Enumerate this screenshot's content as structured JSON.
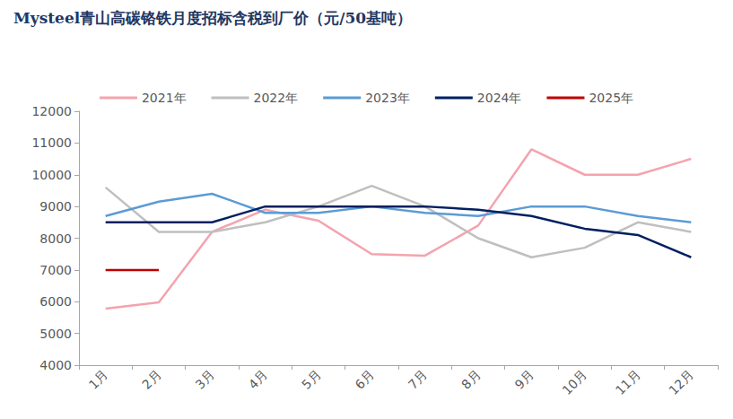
{
  "chart_data": {
    "type": "line",
    "title": "Mysteel青山高碳铬铁月度招标含税到厂价（元/50基吨）",
    "categories": [
      "1月",
      "2月",
      "3月",
      "4月",
      "5月",
      "6月",
      "7月",
      "8月",
      "9月",
      "10月",
      "11月",
      "12月"
    ],
    "series": [
      {
        "name": "2021年",
        "color": "#F4A3AE",
        "values": [
          5780,
          5980,
          8200,
          8900,
          8550,
          7500,
          7450,
          8400,
          10800,
          10000,
          10000,
          10500
        ]
      },
      {
        "name": "2022年",
        "color": "#BFBFBF",
        "values": [
          9600,
          8200,
          8200,
          8500,
          9000,
          9650,
          9000,
          8000,
          7400,
          7700,
          8500,
          8200
        ]
      },
      {
        "name": "2023年",
        "color": "#5B9BD5",
        "values": [
          8700,
          9150,
          9400,
          8800,
          8800,
          9000,
          8800,
          8700,
          9000,
          9000,
          8700,
          8500
        ]
      },
      {
        "name": "2024年",
        "color": "#002060",
        "values": [
          8500,
          8500,
          8500,
          9000,
          9000,
          9000,
          9000,
          8900,
          8700,
          8300,
          8100,
          7400
        ]
      },
      {
        "name": "2025年",
        "color": "#C00000",
        "values": [
          7000,
          7000,
          null,
          null,
          null,
          null,
          null,
          null,
          null,
          null,
          null,
          null
        ]
      }
    ],
    "ylim": [
      4000,
      12000
    ],
    "yticks": [
      4000,
      5000,
      6000,
      7000,
      8000,
      9000,
      10000,
      11000,
      12000
    ],
    "grid": false,
    "legend": "top",
    "marker": "none",
    "line_style": "solid"
  }
}
